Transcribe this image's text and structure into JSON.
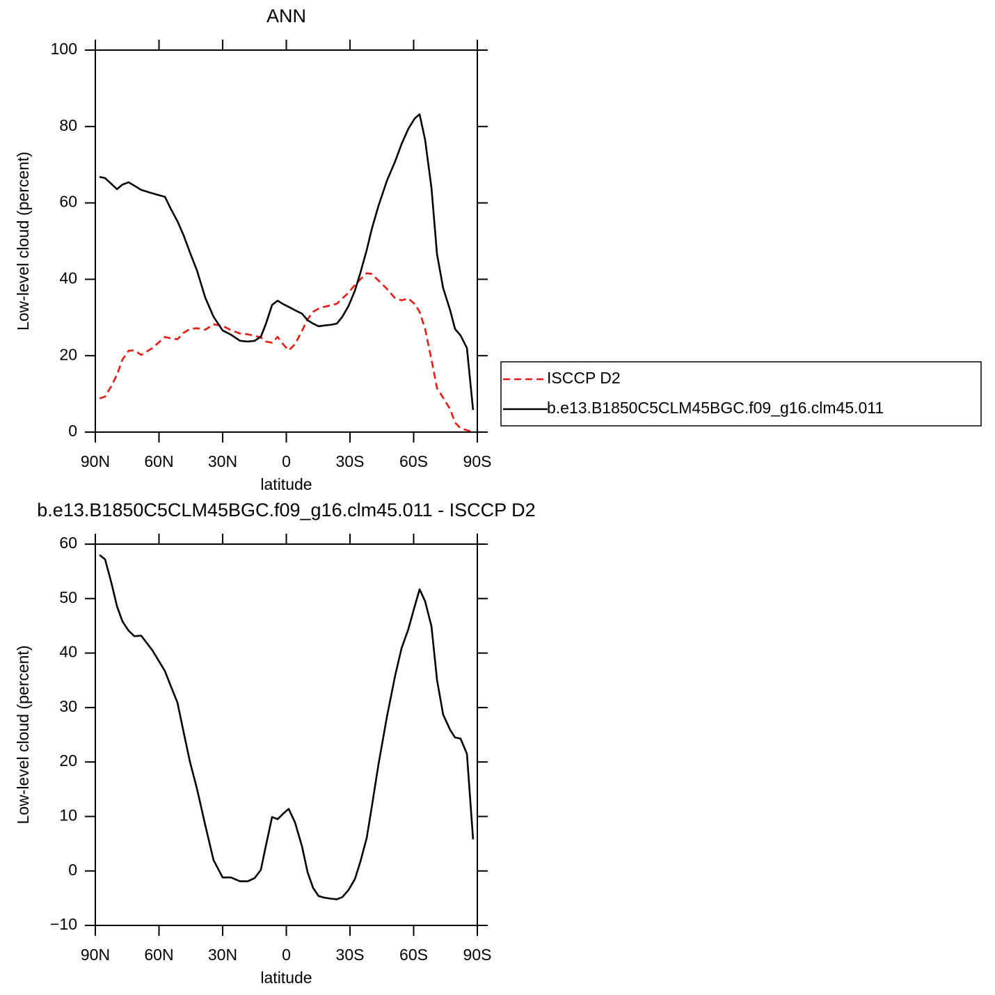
{
  "chart_data": [
    {
      "type": "line",
      "title": "ANN",
      "xlabel": "latitude",
      "ylabel": "Low-level cloud (percent)",
      "x": [
        88,
        85.4,
        82.5,
        79.8,
        77.2,
        74.3,
        71.6,
        68.4,
        63.1,
        57.2,
        54.3,
        51.3,
        48.4,
        45.4,
        42.1,
        38.2,
        34.3,
        30,
        26.1,
        21.8,
        18.2,
        14.9,
        12,
        9.7,
        6.7,
        4.1,
        1.5,
        -1.1,
        -4.1,
        -7.4,
        -10,
        -12.6,
        -15.2,
        -17.9,
        -21.1,
        -23.8,
        -26.4,
        -29.3,
        -32.3,
        -34.9,
        -37.9,
        -40.2,
        -43.4,
        -47.4,
        -51.3,
        -54.3,
        -57.5,
        -60.5,
        -62.8,
        -65.4,
        -68.4,
        -71,
        -73.9,
        -77.2,
        -79.5,
        -82.1,
        -85.1,
        -88
      ],
      "series": [
        {
          "name": "ISCCP D2",
          "color": "#e8190f",
          "linestyle": "dashed",
          "values": [
            8.8,
            9.3,
            12,
            15,
            19,
            21.3,
            21.4,
            20.2,
            22,
            24.9,
            24.5,
            24.3,
            26,
            27,
            27.2,
            26.8,
            28.2,
            27.8,
            26.7,
            25.8,
            25.6,
            25.2,
            24.8,
            23.7,
            23.4,
            24.9,
            23,
            21.4,
            23,
            26.5,
            29.5,
            31.5,
            32.3,
            32.8,
            33.2,
            33.6,
            35,
            36.5,
            38.5,
            40,
            41.6,
            41.4,
            39.7,
            37.5,
            35,
            34.5,
            35,
            33.5,
            31.5,
            27,
            19,
            11.5,
            9,
            6,
            2.5,
            1,
            0.5,
            0
          ]
        },
        {
          "name": "b.e13.B1850C5CLM45BGC.f09_g16.clm45.011",
          "color": "#000000",
          "linestyle": "solid",
          "values": [
            66.8,
            66.5,
            65.0,
            63.6,
            64.8,
            65.4,
            64.5,
            63.4,
            62.5,
            61.6,
            58.3,
            55.2,
            51.5,
            47.0,
            42.3,
            35.2,
            30.2,
            26.6,
            25.5,
            23.9,
            23.7,
            23.9,
            25.0,
            28.2,
            33.3,
            34.4,
            33.5,
            32.8,
            31.9,
            31.0,
            29.3,
            28.4,
            27.7,
            27.9,
            28.1,
            28.4,
            30.2,
            33.0,
            37.0,
            41.7,
            47.7,
            53.0,
            59.2,
            65.8,
            70.9,
            75.4,
            79.4,
            82.1,
            83.2,
            76.5,
            63.9,
            46.6,
            37.7,
            31.9,
            27.0,
            25.3,
            22.0,
            5.8
          ]
        }
      ],
      "xlim": [
        90,
        -90
      ],
      "xticks": [
        {
          "value": 90,
          "label": "90N"
        },
        {
          "value": 60,
          "label": "60N"
        },
        {
          "value": 30,
          "label": "30N"
        },
        0,
        {
          "value": -30,
          "label": "30S"
        },
        {
          "value": -60,
          "label": "60S"
        },
        {
          "value": -90,
          "label": "90S"
        }
      ],
      "ylim": [
        0,
        100
      ],
      "yticks": [
        0,
        20,
        40,
        60,
        80,
        100
      ],
      "legend": "right"
    },
    {
      "type": "line",
      "title": "b.e13.B1850C5CLM45BGC.f09_g16.clm45.011 - ISCCP D2",
      "xlabel": "latitude",
      "ylabel": "Low-level cloud (percent)",
      "x": [
        88,
        85.4,
        82.5,
        79.8,
        77.2,
        74.3,
        71.6,
        68.4,
        63.1,
        57.2,
        54.3,
        51.3,
        48.4,
        45.4,
        42.1,
        38.2,
        34.3,
        30,
        26.1,
        21.8,
        18.2,
        14.9,
        12,
        9.7,
        6.7,
        4.1,
        1.5,
        -1.1,
        -4.1,
        -7.4,
        -10,
        -12.6,
        -15.2,
        -17.9,
        -21.1,
        -23.8,
        -26.4,
        -29.3,
        -32.3,
        -34.9,
        -37.9,
        -40.2,
        -43.4,
        -47.4,
        -51.3,
        -54.3,
        -57.5,
        -60.5,
        -62.8,
        -65.4,
        -68.4,
        -71,
        -73.9,
        -77.2,
        -79.5,
        -82.1,
        -85.1,
        -88
      ],
      "series": [
        {
          "color": "#000000",
          "linestyle": "solid",
          "values": [
            58.0,
            57.2,
            53.0,
            48.6,
            45.8,
            44.1,
            43.1,
            43.2,
            40.5,
            36.7,
            33.8,
            30.9,
            25.5,
            20.0,
            15.1,
            8.4,
            2.0,
            -1.2,
            -1.2,
            -1.9,
            -1.9,
            -1.3,
            0.2,
            4.5,
            9.9,
            9.5,
            10.5,
            11.4,
            8.9,
            4.5,
            -0.2,
            -3.1,
            -4.6,
            -4.9,
            -5.1,
            -5.2,
            -4.8,
            -3.5,
            -1.5,
            1.7,
            6.1,
            11.6,
            19.5,
            28.3,
            35.9,
            40.9,
            44.4,
            48.6,
            51.7,
            49.5,
            44.9,
            35.1,
            28.7,
            25.9,
            24.5,
            24.3,
            21.5,
            5.8
          ]
        }
      ],
      "xlim": [
        90,
        -90
      ],
      "xticks": [
        {
          "value": 90,
          "label": "90N"
        },
        {
          "value": 60,
          "label": "60N"
        },
        {
          "value": 30,
          "label": "30N"
        },
        0,
        {
          "value": -30,
          "label": "30S"
        },
        {
          "value": -60,
          "label": "60S"
        },
        {
          "value": -90,
          "label": "90S"
        }
      ],
      "ylim": [
        -10,
        60
      ],
      "yticks": [
        {
          "value": -10,
          "label": "−10"
        },
        0,
        10,
        20,
        30,
        40,
        50,
        60
      ]
    }
  ]
}
